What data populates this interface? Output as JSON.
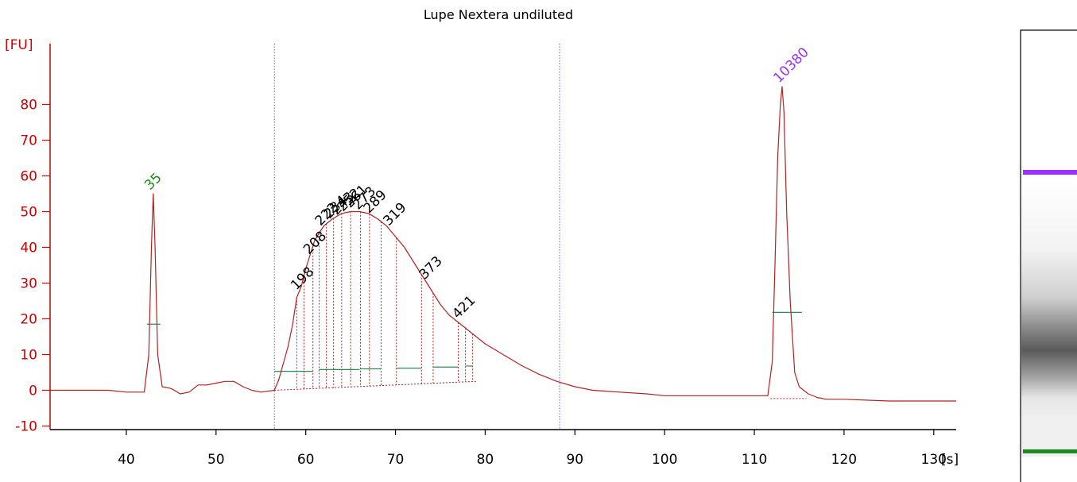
{
  "chart_data": {
    "type": "line",
    "title": "Lupe Nextera undiluted",
    "ylabel": "[FU]",
    "xunit": "[s]",
    "xlim": [
      31.5,
      132.5
    ],
    "ylim": [
      -11,
      97
    ],
    "xticks": [
      40,
      50,
      60,
      70,
      80,
      90,
      100,
      110,
      120,
      130
    ],
    "xtick_labels": [
      "40",
      "50",
      "60",
      "70",
      "80",
      "90",
      "100",
      "110",
      "120",
      "130"
    ],
    "yticks": [
      -10,
      0,
      10,
      20,
      30,
      40,
      50,
      60,
      70,
      80
    ],
    "ytick_labels": [
      "-10",
      "0",
      "10",
      "20",
      "30",
      "40",
      "50",
      "60",
      "70",
      "80"
    ],
    "region_bounds": [
      56.5,
      88.3
    ],
    "colors": {
      "trace": "#b22222",
      "axis": "#cc0000",
      "lower_marker": "#1a8a1a",
      "upper_marker": "#9b30ff",
      "baseline": "#2e8b57",
      "label_text": "#000000",
      "bound_line": "#6666aa"
    },
    "series": [
      {
        "x": [
          31.5,
          35,
          38,
          40,
          41,
          42,
          42.5,
          42.8,
          43.0,
          43.2,
          43.5,
          44,
          45,
          46,
          47,
          48,
          49,
          50,
          51,
          52,
          53,
          54,
          55,
          56.5,
          57,
          58,
          58.5,
          59,
          59.5,
          60,
          60.5,
          61,
          61.5,
          62,
          63,
          64,
          65,
          66,
          67,
          68,
          69,
          70,
          71,
          72,
          73,
          74,
          75,
          76,
          77,
          78,
          79,
          80,
          82,
          84,
          86,
          88,
          90,
          92,
          95,
          98,
          100,
          105,
          110,
          111.5,
          112,
          112.3,
          112.6,
          112.9,
          113.1,
          113.3,
          113.6,
          114,
          114.5,
          115,
          116,
          117,
          118,
          120,
          125,
          130,
          132.5
        ],
        "y": [
          0,
          0,
          0,
          -0.5,
          -0.5,
          -0.5,
          10,
          40,
          55,
          40,
          10,
          1,
          0.5,
          -1,
          -0.5,
          1.5,
          1.5,
          2,
          2.5,
          2.5,
          1,
          0,
          -0.5,
          0,
          3,
          12,
          18,
          26,
          29,
          34,
          38,
          42,
          44,
          46,
          48,
          49.5,
          50,
          50,
          49.5,
          48,
          46,
          43,
          40,
          36,
          32,
          28,
          24,
          21,
          19,
          17,
          15,
          13,
          10,
          7,
          4.5,
          2.5,
          1,
          0,
          -0.5,
          -1,
          -1.5,
          -1.5,
          -1.5,
          -1.5,
          8,
          35,
          65,
          80,
          85,
          78,
          50,
          25,
          5,
          1,
          -1,
          -2,
          -2.5,
          -2.5,
          -3,
          -3,
          -3
        ]
      }
    ],
    "peaks": [
      {
        "x": 43.0,
        "y": 55,
        "label": "35",
        "kind": "lower"
      },
      {
        "x": 113.1,
        "y": 85,
        "label": "10380",
        "kind": "upper"
      },
      {
        "x": 59.3,
        "y": 27,
        "label": "198",
        "kind": "sample"
      },
      {
        "x": 60.7,
        "y": 37,
        "label": "208",
        "kind": "sample"
      },
      {
        "x": 62.0,
        "y": 45,
        "label": "222",
        "kind": "sample"
      },
      {
        "x": 63.0,
        "y": 47,
        "label": "234",
        "kind": "sample"
      },
      {
        "x": 63.8,
        "y": 48,
        "label": "243",
        "kind": "sample"
      },
      {
        "x": 64.5,
        "y": 49,
        "label": "252",
        "kind": "sample"
      },
      {
        "x": 65.3,
        "y": 50,
        "label": "261",
        "kind": "sample"
      },
      {
        "x": 66.2,
        "y": 49.5,
        "label": "273",
        "kind": "sample"
      },
      {
        "x": 67.4,
        "y": 48.5,
        "label": "289",
        "kind": "sample"
      },
      {
        "x": 69.6,
        "y": 45,
        "label": "319",
        "kind": "sample"
      },
      {
        "x": 73.6,
        "y": 30,
        "label": "373",
        "kind": "sample"
      },
      {
        "x": 77.3,
        "y": 19,
        "label": "421",
        "kind": "sample"
      }
    ],
    "peak_dividers": [
      59.0,
      59.8,
      60.8,
      61.5,
      62.3,
      63.1,
      64.0,
      65.0,
      66.1,
      67.1,
      68.4,
      70.1,
      72.9,
      74.2,
      77.0,
      77.8,
      78.6
    ],
    "baseline_segments": [
      {
        "x1": 42.3,
        "x2": 43.8,
        "y": 18.5
      },
      {
        "x1": 56.5,
        "x2": 60.8,
        "y": 5.3
      },
      {
        "x1": 61.5,
        "x2": 66.0,
        "y": 5.8
      },
      {
        "x1": 66.1,
        "x2": 68.4,
        "y": 6.0
      },
      {
        "x1": 70.1,
        "x2": 72.9,
        "y": 6.2
      },
      {
        "x1": 74.2,
        "x2": 77.0,
        "y": 6.5
      },
      {
        "x1": 77.8,
        "x2": 78.6,
        "y": 6.8
      },
      {
        "x1": 112.0,
        "x2": 115.3,
        "y": 21.8
      }
    ],
    "gel_lane": {
      "upper_marker_y": 87,
      "lower_marker_y": -8,
      "smear": "gray band between markers"
    }
  }
}
